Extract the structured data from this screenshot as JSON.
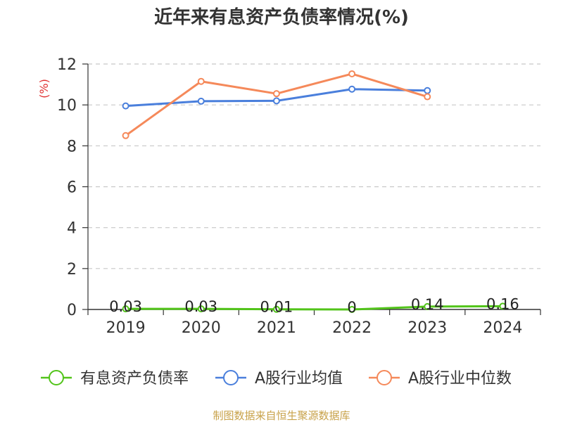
{
  "chart_data": {
    "type": "line",
    "title": "近年来有息资产负债率情况(%)",
    "ylabel": "(%)",
    "xlabel": "",
    "categories": [
      "2019",
      "2020",
      "2021",
      "2022",
      "2023",
      "2024"
    ],
    "ylim": [
      0,
      12
    ],
    "yticks": [
      0,
      2,
      4,
      6,
      8,
      10,
      12
    ],
    "grid": true,
    "legend_position": "bottom",
    "series": [
      {
        "name": "有息资产负债率",
        "color": "#52c41a",
        "values": [
          0.03,
          0.03,
          0.01,
          0,
          0.14,
          0.16
        ],
        "labels": [
          "0.03",
          "0.03",
          "0.01",
          "0",
          "0.14",
          "0.16"
        ]
      },
      {
        "name": "A股行业均值",
        "color": "#4a7fdc",
        "values": [
          9.95,
          10.18,
          10.2,
          10.77,
          10.7,
          null
        ]
      },
      {
        "name": "A股行业中位数",
        "color": "#f5895a",
        "values": [
          8.5,
          11.15,
          10.55,
          11.52,
          10.4,
          null
        ]
      }
    ]
  },
  "source_note": "制图数据来自恒生聚源数据库"
}
